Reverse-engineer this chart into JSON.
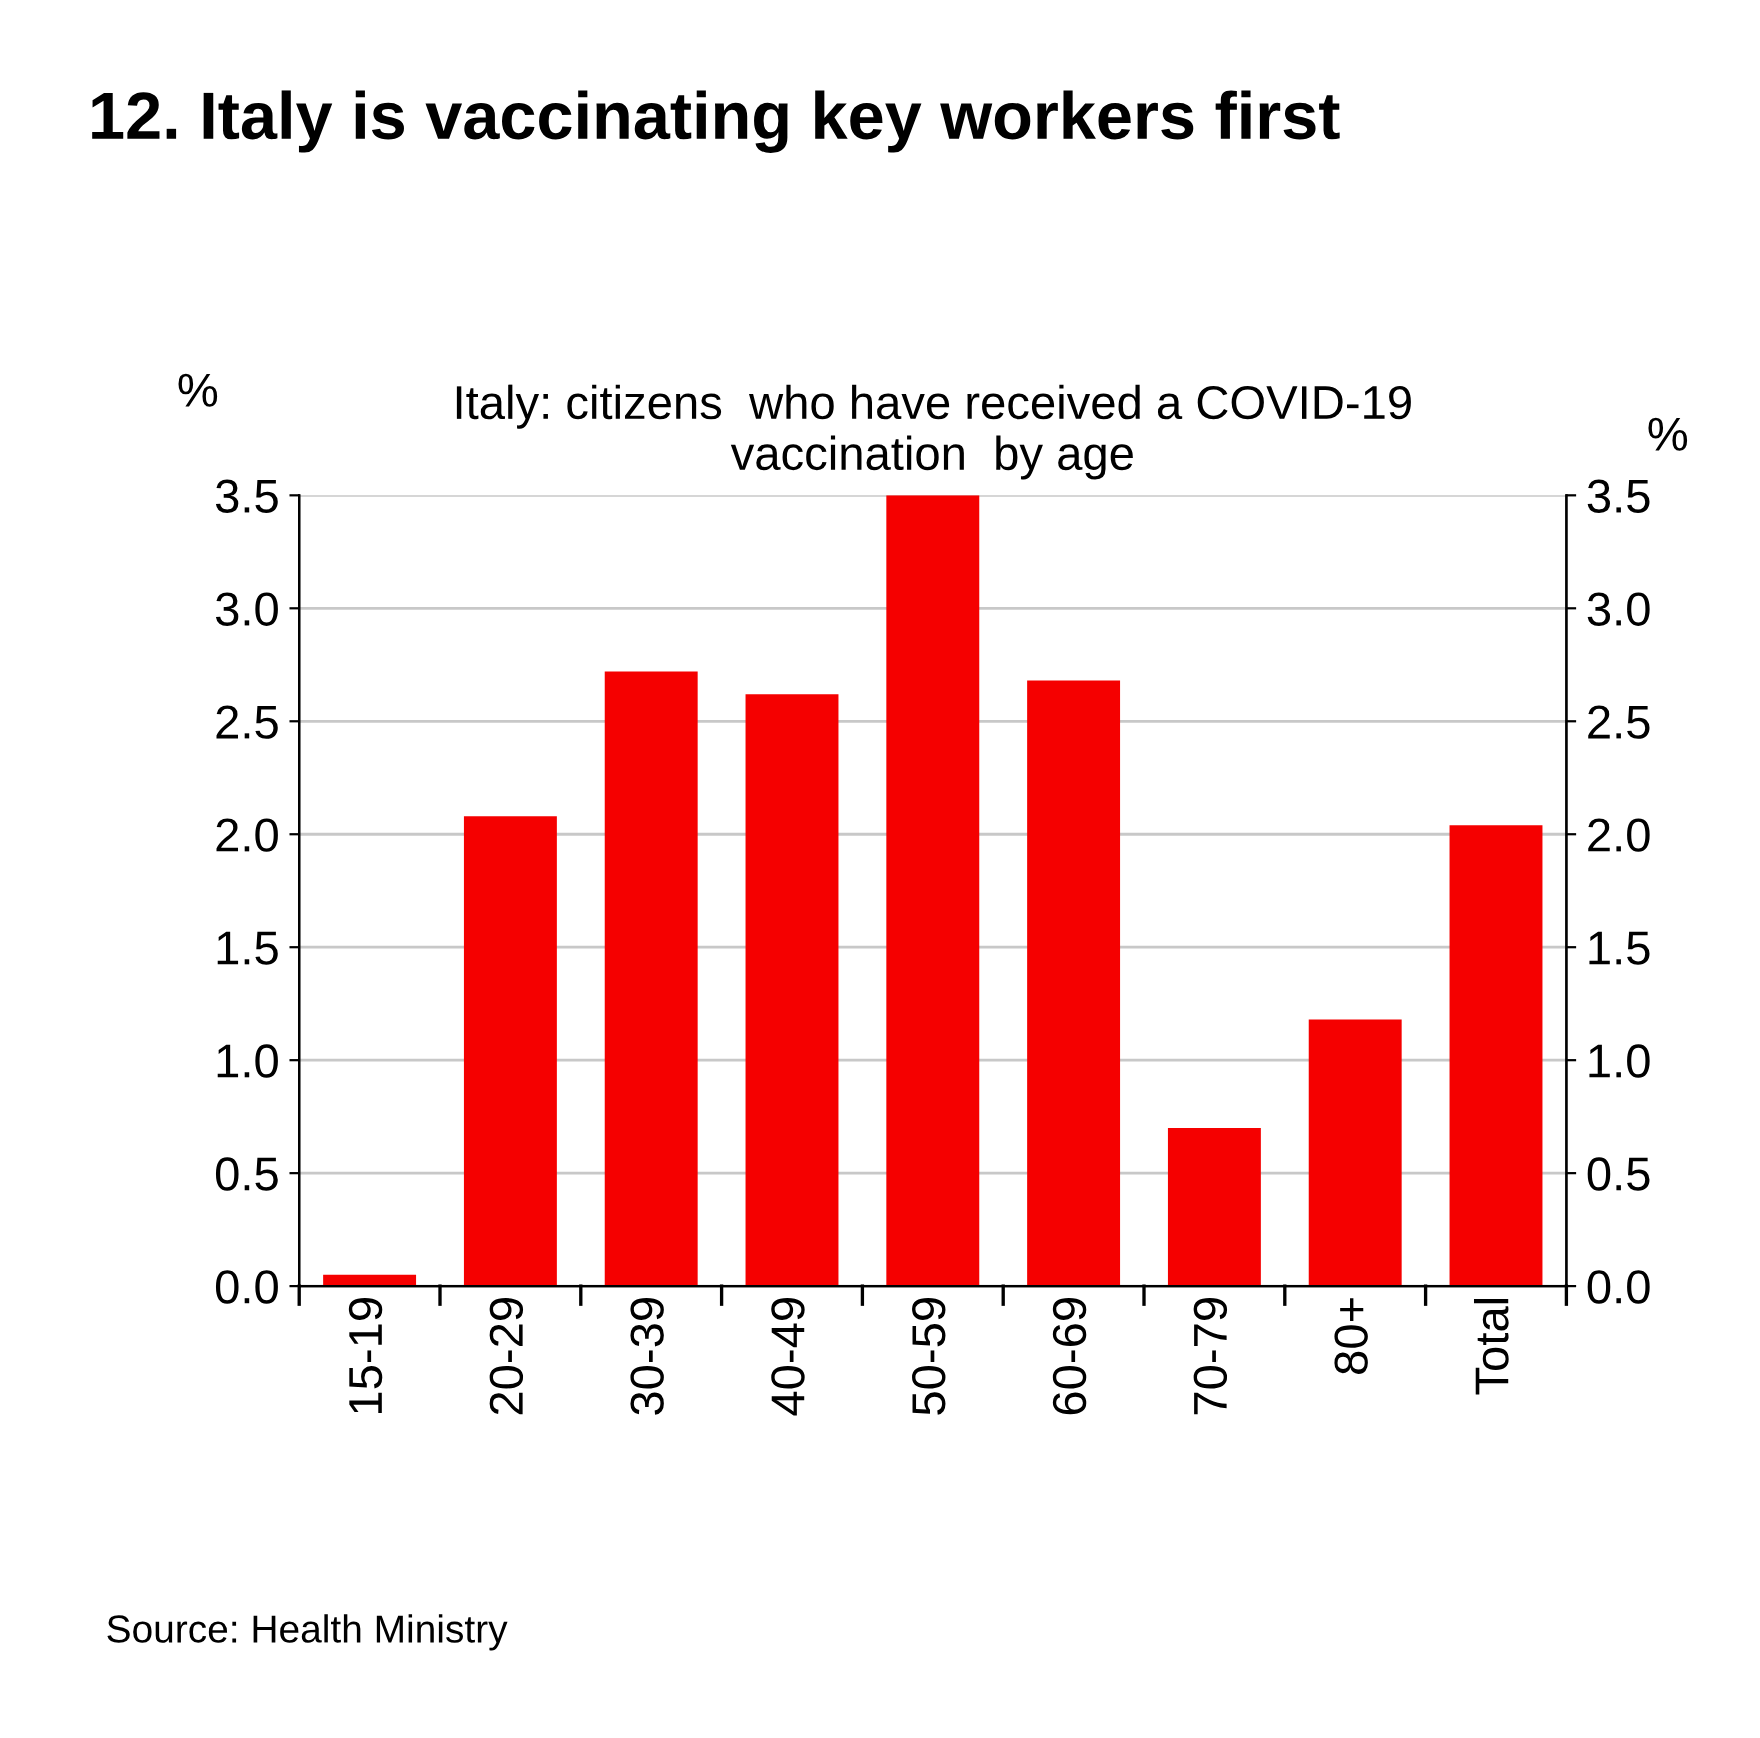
{
  "chart_data": {
    "type": "bar",
    "title": "12. Italy is vaccinating key workers first",
    "subtitle": "Italy: citizens  who have received a COVID-19\nvaccination  by age",
    "ylabel": "%",
    "y2label": "%",
    "categories": [
      "15-19",
      "20-29",
      "30-39",
      "40-49",
      "50-59",
      "60-69",
      "70-79",
      "80+",
      "Total"
    ],
    "values": [
      0.05,
      2.08,
      2.72,
      2.62,
      3.5,
      2.68,
      0.7,
      1.18,
      2.04
    ],
    "color": "#f50000",
    "ylim": [
      0,
      3.5
    ],
    "yticks": [
      {
        "value": 0,
        "label": "0.0"
      },
      {
        "value": 0.5,
        "label": "0.5"
      },
      {
        "value": 1,
        "label": "1.0"
      },
      {
        "value": 1.5,
        "label": "1.5"
      },
      {
        "value": 2,
        "label": "2.0"
      },
      {
        "value": 2.5,
        "label": "2.5"
      },
      {
        "value": 3,
        "label": "3.0"
      },
      {
        "value": 3.5,
        "label": "3.5"
      }
    ],
    "y2lim": [
      0,
      3.5
    ],
    "y2ticks": [
      {
        "value": 0,
        "label": "0.0"
      },
      {
        "value": 0.5,
        "label": "0.5"
      },
      {
        "value": 1,
        "label": "1.0"
      },
      {
        "value": 1.5,
        "label": "1.5"
      },
      {
        "value": 2,
        "label": "2.0"
      },
      {
        "value": 2.5,
        "label": "2.5"
      },
      {
        "value": 3,
        "label": "3.0"
      },
      {
        "value": 3.5,
        "label": "3.5"
      }
    ],
    "grid": "y",
    "annotations": [
      "Source: Health Ministry"
    ]
  }
}
